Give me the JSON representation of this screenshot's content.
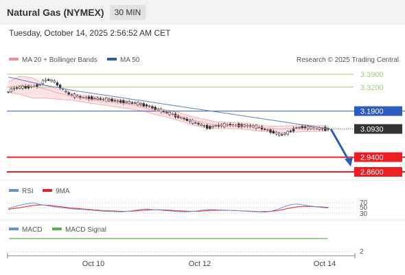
{
  "header": {
    "title": "Natural Gas (NYMEX)",
    "interval": "30 MIN",
    "datetime": "Tuesday, October 14, 2025 2:56:52 AM CET"
  },
  "colors": {
    "candle": "#333333",
    "bollinger_fill": "#fde3e6",
    "bollinger_line": "#f5a3ab",
    "ma50": "#5b7fb8",
    "resistance_green": "#9dcc7e",
    "pivot_blue": "#2d5bbf",
    "support_red": "#ee1c25",
    "current_price_bg": "#333333",
    "arrow": "#2d5fa6",
    "rsi": "#6b8fd6",
    "rsi_9ma": "#ee1c25",
    "macd": "#6b8fd6",
    "macd_signal": "#5ab04c"
  },
  "chart_data": [
    {
      "type": "candlestick",
      "legend": [
        {
          "label": "MA 20 + Bollinger Bands",
          "color": "#f28b96"
        },
        {
          "label": "MA 50",
          "color": "#2d5fa6"
        }
      ],
      "watermark": "Research © 2025 Trading Central",
      "ylim": [
        2.8348,
        3.4398
      ],
      "x_tick_labels": [
        "Oct 10",
        "Oct 12",
        "Oct 14"
      ],
      "levels": [
        {
          "value": 3.39,
          "label": "3.3900",
          "kind": "resistance"
        },
        {
          "value": 3.32,
          "label": "3.3200",
          "kind": "resistance"
        },
        {
          "value": 3.19,
          "label": "3.1900",
          "kind": "pivot"
        },
        {
          "value": 3.093,
          "label": "3.0930",
          "kind": "current"
        },
        {
          "value": 2.94,
          "label": "2.9400",
          "kind": "support"
        },
        {
          "value": 2.86,
          "label": "2.8600",
          "kind": "support"
        }
      ],
      "close_series": [
        3.295,
        3.31,
        3.318,
        3.32,
        3.322,
        3.325,
        3.33,
        3.355,
        3.36,
        3.35,
        3.325,
        3.3,
        3.28,
        3.272,
        3.265,
        3.262,
        3.26,
        3.258,
        3.255,
        3.252,
        3.25,
        3.245,
        3.24,
        3.238,
        3.235,
        3.232,
        3.225,
        3.22,
        3.21,
        3.2,
        3.19,
        3.18,
        3.17,
        3.16,
        3.15,
        3.14,
        3.13,
        3.12,
        3.11,
        3.1,
        3.11,
        3.112,
        3.114,
        3.115,
        3.113,
        3.112,
        3.11,
        3.108,
        3.105,
        3.1,
        3.09,
        3.08,
        3.07,
        3.06,
        3.07,
        3.085,
        3.1,
        3.102,
        3.1,
        3.098,
        3.096,
        3.094,
        3.093
      ],
      "ma50": [
        3.375,
        3.36,
        3.345,
        3.33,
        3.318,
        3.305,
        3.295,
        3.285,
        3.275,
        3.265,
        3.255,
        3.245,
        3.235,
        3.225,
        3.215,
        3.205,
        3.195,
        3.185,
        3.175,
        3.165,
        3.155,
        3.145,
        3.135,
        3.125,
        3.115,
        3.105,
        3.095
      ],
      "ma20": [
        3.32,
        3.33,
        3.325,
        3.31,
        3.29,
        3.272,
        3.26,
        3.25,
        3.242,
        3.235,
        3.225,
        3.21,
        3.192,
        3.175,
        3.16,
        3.142,
        3.125,
        3.115,
        3.112,
        3.11,
        3.105,
        3.098,
        3.092,
        3.094,
        3.096,
        3.097,
        3.096
      ],
      "bollinger_upper": [
        3.35,
        3.38,
        3.37,
        3.33,
        3.31,
        3.29,
        3.275,
        3.27,
        3.262,
        3.255,
        3.24,
        3.23,
        3.205,
        3.195,
        3.18,
        3.16,
        3.145,
        3.13,
        3.128,
        3.125,
        3.118,
        3.11,
        3.108,
        3.112,
        3.116,
        3.112,
        3.11
      ],
      "bollinger_lower": [
        3.29,
        3.28,
        3.26,
        3.26,
        3.255,
        3.25,
        3.24,
        3.23,
        3.22,
        3.21,
        3.2,
        3.19,
        3.17,
        3.155,
        3.135,
        3.115,
        3.1,
        3.095,
        3.095,
        3.092,
        3.085,
        3.078,
        3.07,
        3.075,
        3.078,
        3.08,
        3.082
      ],
      "projection": {
        "from": 3.093,
        "to": 2.9
      }
    },
    {
      "type": "line",
      "title": "RSI",
      "series": [
        {
          "name": "RSI",
          "color": "#6b8fd6"
        },
        {
          "name": "9MA",
          "color": "#ee1c25"
        }
      ],
      "y_tick_labels": [
        "70",
        "50",
        "30"
      ],
      "rsi_values": [
        48,
        55,
        62,
        66,
        70,
        64,
        60,
        56,
        52,
        50,
        47,
        45,
        44,
        42,
        40,
        38,
        37,
        36,
        35,
        37,
        40,
        44,
        46,
        44,
        42,
        40,
        38,
        36,
        35,
        36,
        38,
        42,
        44,
        43,
        42,
        41,
        40,
        39,
        37,
        36,
        35,
        34,
        38,
        45,
        55,
        63,
        65,
        62,
        58,
        55,
        52,
        50
      ],
      "ma9_values": [
        45,
        48,
        52,
        56,
        60,
        62,
        61,
        59,
        56,
        53,
        50,
        48,
        46,
        44,
        42,
        40,
        39,
        38,
        37,
        37,
        38,
        40,
        42,
        43,
        43,
        42,
        41,
        39,
        38,
        37,
        37,
        38,
        40,
        41,
        41,
        41,
        40,
        39,
        38,
        37,
        36,
        36,
        37,
        40,
        45,
        50,
        54,
        56,
        56,
        55,
        54,
        52
      ]
    },
    {
      "type": "line",
      "title": "MACD",
      "series": [
        {
          "name": "MACD",
          "color": "#6b8fd6"
        },
        {
          "name": "MACD Signal",
          "color": "#5ab04c"
        }
      ],
      "y_tick_labels": [
        "2"
      ],
      "values": [
        0,
        0,
        0,
        0,
        0,
        0,
        0,
        0,
        0,
        0
      ]
    }
  ]
}
